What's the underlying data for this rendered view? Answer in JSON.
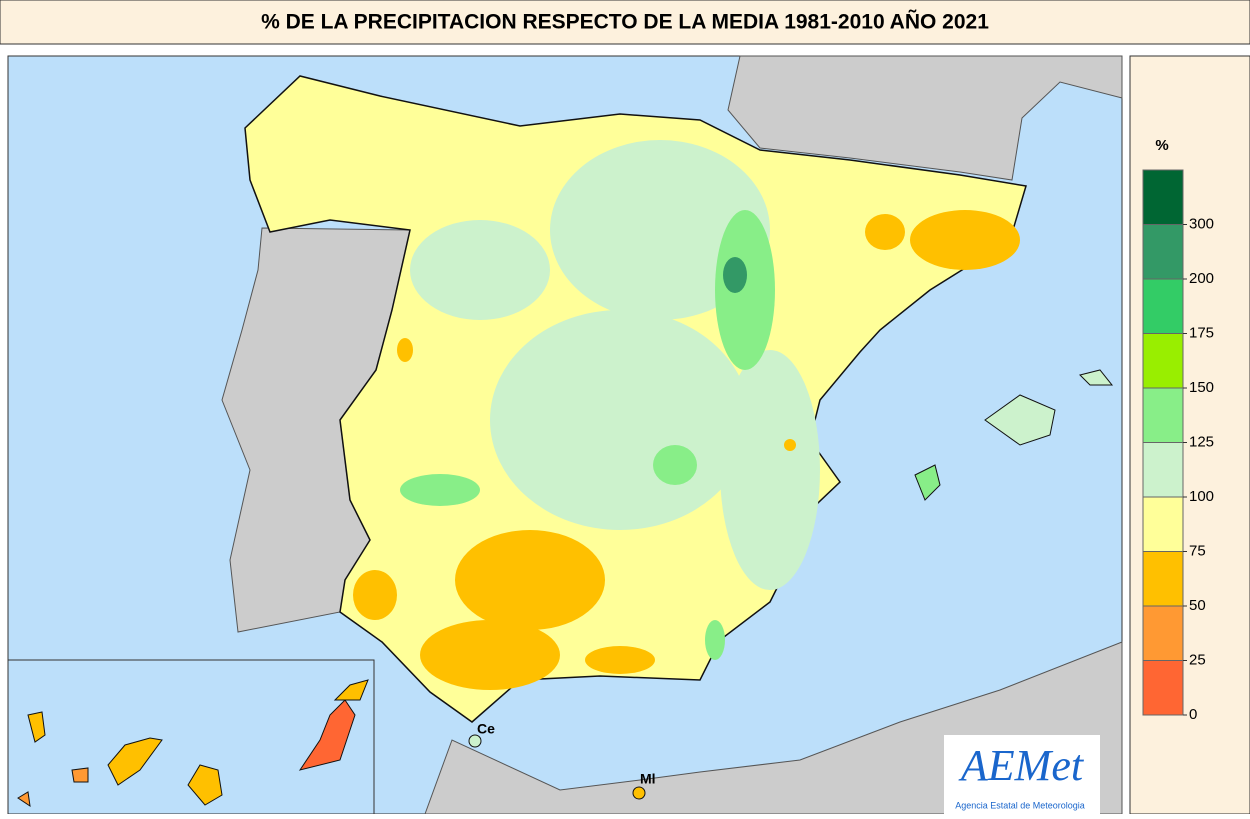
{
  "title": "% DE LA PRECIPITACION RESPECTO DE LA MEDIA 1981-2010 AÑO  2021",
  "legend": {
    "unit": "%",
    "ticks": [
      0,
      25,
      50,
      75,
      100,
      125,
      150,
      175,
      200,
      300
    ],
    "colors": [
      "#ff6633",
      "#ff9933",
      "#ffc000",
      "#ffff99",
      "#ccf2cc",
      "#88ee88",
      "#99ee00",
      "#33cc66",
      "#339966",
      "#006633"
    ]
  },
  "places": {
    "ceuta": "Ce",
    "melilla": "Ml"
  },
  "logo": {
    "name": "AEMet",
    "subtitle": "Agencia Estatal de Meteorologia"
  }
}
